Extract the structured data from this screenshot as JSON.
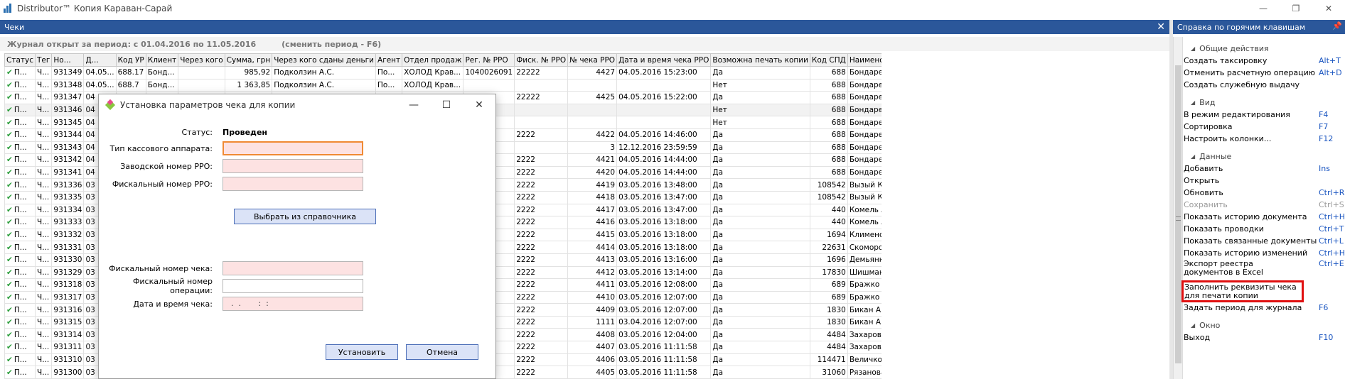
{
  "window": {
    "title": "Distributor™ Копия Караван-Сарай",
    "minimize": "—",
    "restore": "❐",
    "close": "✕"
  },
  "left_panel": {
    "title": "Чеки",
    "close": "✕",
    "period_text": "Журнал открыт за период: с 01.04.2016 по 11.05.2016",
    "change_period": "(сменить период - F6)"
  },
  "grid": {
    "columns": [
      "Статус",
      "Тег",
      "Но...",
      "Д...",
      "Код УР",
      "Клиент",
      "Через кого",
      "Сумма, грн",
      "Через кого сданы деньги",
      "Агент",
      "Отдел продаж",
      "Рег. № РРО",
      "Фиск. № РРО",
      "№ чека РРО",
      "Дата и время чека РРО",
      "Возможна печать копии",
      "Код СПД",
      "Наименование СПД"
    ],
    "rows": [
      {
        "status": "П...",
        "tag": "Ч...",
        "no": "931349",
        "date": "04.05...",
        "code": "688.17",
        "client": "Бонд...",
        "via": "",
        "sum": "985,92",
        "cash_via": "Подколзин А.С.",
        "agent": "По...",
        "dept": "ХОЛОД Крав...",
        "reg": "1040026091",
        "fisc": "22222",
        "check_no": "4427",
        "dt": "04.05.2016 15:23:00",
        "copy": "Да",
        "spd_code": "688",
        "spd": "Бондарева О.С."
      },
      {
        "status": "П...",
        "tag": "Ч...",
        "no": "931348",
        "date": "04.05...",
        "code": "688.7",
        "client": "Бонд...",
        "via": "",
        "sum": "1 363,85",
        "cash_via": "Подколзин А.С.",
        "agent": "По...",
        "dept": "ХОЛОД Крав...",
        "reg": "",
        "fisc": "",
        "check_no": "",
        "dt": "",
        "copy": "Нет",
        "spd_code": "688",
        "spd": "Бондарева О.С."
      },
      {
        "status": "П...",
        "tag": "Ч...",
        "no": "931347",
        "date": "04",
        "code": "",
        "client": "",
        "via": "",
        "sum": "",
        "cash_via": "",
        "agent": "",
        "dept": "",
        "reg": "",
        "fisc": "22222",
        "check_no": "4425",
        "dt": "04.05.2016 15:22:00",
        "copy": "Да",
        "spd_code": "688",
        "spd": "Бондарева О.С."
      },
      {
        "status": "П...",
        "tag": "Ч...",
        "no": "931346",
        "date": "04",
        "code": "",
        "client": "",
        "via": "",
        "sum": "",
        "cash_via": "",
        "agent": "",
        "dept": "",
        "reg": "",
        "fisc": "",
        "check_no": "",
        "dt": "",
        "copy": "Нет",
        "spd_code": "688",
        "spd": "Бондарева О.С."
      },
      {
        "status": "П...",
        "tag": "Ч...",
        "no": "931345",
        "date": "04",
        "code": "",
        "client": "",
        "via": "",
        "sum": "",
        "cash_via": "",
        "agent": "",
        "dept": "",
        "reg": "",
        "fisc": "",
        "check_no": "",
        "dt": "",
        "copy": "Нет",
        "spd_code": "688",
        "spd": "Бондарева О.С."
      },
      {
        "status": "П...",
        "tag": "Ч...",
        "no": "931344",
        "date": "04",
        "code": "",
        "client": "",
        "via": "",
        "sum": "",
        "cash_via": "",
        "agent": "",
        "dept": "",
        "reg": "",
        "fisc": "2222",
        "check_no": "4422",
        "dt": "04.05.2016 14:46:00",
        "copy": "Да",
        "spd_code": "688",
        "spd": "Бондарева О.С."
      },
      {
        "status": "П...",
        "tag": "Ч...",
        "no": "931343",
        "date": "04",
        "code": "",
        "client": "",
        "via": "",
        "sum": "",
        "cash_via": "",
        "agent": "",
        "dept": "",
        "reg": "",
        "fisc": "",
        "check_no": "3",
        "dt": "12.12.2016 23:59:59",
        "copy": "Да",
        "spd_code": "688",
        "spd": "Бондарева О.С."
      },
      {
        "status": "П...",
        "tag": "Ч...",
        "no": "931342",
        "date": "04",
        "code": "",
        "client": "",
        "via": "",
        "sum": "",
        "cash_via": "",
        "agent": "",
        "dept": "",
        "reg": "",
        "fisc": "2222",
        "check_no": "4421",
        "dt": "04.05.2016 14:44:00",
        "copy": "Да",
        "spd_code": "688",
        "spd": "Бондарева О.С."
      },
      {
        "status": "П...",
        "tag": "Ч...",
        "no": "931341",
        "date": "04",
        "code": "",
        "client": "",
        "via": "",
        "sum": "",
        "cash_via": "",
        "agent": "",
        "dept": "",
        "reg": "",
        "fisc": "2222",
        "check_no": "4420",
        "dt": "04.05.2016 14:44:00",
        "copy": "Да",
        "spd_code": "688",
        "spd": "Бондарева О.С."
      },
      {
        "status": "П...",
        "tag": "Ч...",
        "no": "931336",
        "date": "03",
        "code": "",
        "client": "",
        "via": "",
        "sum": "",
        "cash_via": "",
        "agent": "",
        "dept": "",
        "reg": "",
        "fisc": "2222",
        "check_no": "4419",
        "dt": "03.05.2016 13:48:00",
        "copy": "Да",
        "spd_code": "108542",
        "spd": "Вызый К.И."
      },
      {
        "status": "П...",
        "tag": "Ч...",
        "no": "931335",
        "date": "03",
        "code": "",
        "client": "",
        "via": "",
        "sum": "",
        "cash_via": "",
        "agent": "",
        "dept": "",
        "reg": "",
        "fisc": "2222",
        "check_no": "4418",
        "dt": "03.05.2016 13:47:00",
        "copy": "Да",
        "spd_code": "108542",
        "spd": "Вызый К.И."
      },
      {
        "status": "П...",
        "tag": "Ч...",
        "no": "931334",
        "date": "03",
        "code": "",
        "client": "",
        "via": "",
        "sum": "",
        "cash_via": "",
        "agent": "",
        "dept": "",
        "reg": "",
        "fisc": "2222",
        "check_no": "4417",
        "dt": "03.05.2016 13:47:00",
        "copy": "Да",
        "spd_code": "440",
        "spd": "Комель А.И."
      },
      {
        "status": "П...",
        "tag": "Ч...",
        "no": "931333",
        "date": "03",
        "code": "",
        "client": "",
        "via": "",
        "sum": "",
        "cash_via": "",
        "agent": "",
        "dept": "",
        "reg": "",
        "fisc": "2222",
        "check_no": "4416",
        "dt": "03.05.2016 13:18:00",
        "copy": "Да",
        "spd_code": "440",
        "spd": "Комель А.И."
      },
      {
        "status": "П...",
        "tag": "Ч...",
        "no": "931332",
        "date": "03",
        "code": "",
        "client": "",
        "via": "",
        "sum": "",
        "cash_via": "",
        "agent": "",
        "dept": "",
        "reg": "",
        "fisc": "2222",
        "check_no": "4415",
        "dt": "03.05.2016 13:18:00",
        "copy": "Да",
        "spd_code": "1694",
        "spd": "Клименова Т.А."
      },
      {
        "status": "П...",
        "tag": "Ч...",
        "no": "931331",
        "date": "03",
        "code": "",
        "client": "",
        "via": "",
        "sum": "",
        "cash_via": "",
        "agent": "",
        "dept": "",
        "reg": "",
        "fisc": "2222",
        "check_no": "4414",
        "dt": "03.05.2016 13:18:00",
        "copy": "Да",
        "spd_code": "22631",
        "spd": "Скоморох В.Н."
      },
      {
        "status": "П...",
        "tag": "Ч...",
        "no": "931330",
        "date": "03",
        "code": "",
        "client": "",
        "via": "",
        "sum": "",
        "cash_via": "",
        "agent": "",
        "dept": "",
        "reg": "",
        "fisc": "2222",
        "check_no": "4413",
        "dt": "03.05.2016 13:16:00",
        "copy": "Да",
        "spd_code": "1696",
        "spd": "Демьянко М.В."
      },
      {
        "status": "П...",
        "tag": "Ч...",
        "no": "931329",
        "date": "03",
        "code": "",
        "client": "",
        "via": "",
        "sum": "",
        "cash_via": "",
        "agent": "",
        "dept": "",
        "reg": "",
        "fisc": "2222",
        "check_no": "4412",
        "dt": "03.05.2016 13:14:00",
        "copy": "Да",
        "spd_code": "17830",
        "spd": "Шишман С.Г."
      },
      {
        "status": "П...",
        "tag": "Ч...",
        "no": "931318",
        "date": "03",
        "code": "",
        "client": "",
        "via": "",
        "sum": "",
        "cash_via": "",
        "agent": "",
        "dept": "",
        "reg": "",
        "fisc": "2222",
        "check_no": "4411",
        "dt": "03.05.2016 12:08:00",
        "copy": "Да",
        "spd_code": "689",
        "spd": "Бражко И.В."
      },
      {
        "status": "П...",
        "tag": "Ч...",
        "no": "931317",
        "date": "03",
        "code": "",
        "client": "",
        "via": "",
        "sum": "",
        "cash_via": "",
        "agent": "",
        "dept": "",
        "reg": "",
        "fisc": "2222",
        "check_no": "4410",
        "dt": "03.05.2016 12:07:00",
        "copy": "Да",
        "spd_code": "689",
        "spd": "Бражко И.В."
      },
      {
        "status": "П...",
        "tag": "Ч...",
        "no": "931316",
        "date": "03",
        "code": "",
        "client": "",
        "via": "",
        "sum": "",
        "cash_via": "",
        "agent": "",
        "dept": "",
        "reg": "",
        "fisc": "2222",
        "check_no": "4409",
        "dt": "03.05.2016 12:07:00",
        "copy": "Да",
        "spd_code": "1830",
        "spd": "Бикан А.В."
      },
      {
        "status": "П...",
        "tag": "Ч...",
        "no": "931315",
        "date": "03",
        "code": "",
        "client": "",
        "via": "",
        "sum": "",
        "cash_via": "",
        "agent": "",
        "dept": "",
        "reg": "",
        "fisc": "2222",
        "check_no": "1111",
        "dt": "03.04.2016 12:07:00",
        "copy": "Да",
        "spd_code": "1830",
        "spd": "Бикан А.В."
      },
      {
        "status": "П...",
        "tag": "Ч...",
        "no": "931314",
        "date": "03",
        "code": "",
        "client": "",
        "via": "",
        "sum": "",
        "cash_via": "",
        "agent": "",
        "dept": "",
        "reg": "",
        "fisc": "2222",
        "check_no": "4408",
        "dt": "03.05.2016 12:04:00",
        "copy": "Да",
        "spd_code": "4484",
        "spd": "Захарова А.Ю."
      },
      {
        "status": "П...",
        "tag": "Ч...",
        "no": "931311",
        "date": "03",
        "code": "",
        "client": "",
        "via": "",
        "sum": "",
        "cash_via": "",
        "agent": "",
        "dept": "",
        "reg": "",
        "fisc": "2222",
        "check_no": "4407",
        "dt": "03.05.2016 11:11:58",
        "copy": "Да",
        "spd_code": "4484",
        "spd": "Захарова А.Ю."
      },
      {
        "status": "П...",
        "tag": "Ч...",
        "no": "931310",
        "date": "03",
        "code": "",
        "client": "",
        "via": "",
        "sum": "",
        "cash_via": "",
        "agent": "",
        "dept": "",
        "reg": "",
        "fisc": "2222",
        "check_no": "4406",
        "dt": "03.05.2016 11:11:58",
        "copy": "Да",
        "spd_code": "114471",
        "spd": "Величко В.В."
      },
      {
        "status": "П...",
        "tag": "Ч...",
        "no": "931300",
        "date": "03",
        "code": "",
        "client": "",
        "via": "",
        "sum": "",
        "cash_via": "",
        "agent": "",
        "dept": "",
        "reg": "",
        "fisc": "2222",
        "check_no": "4405",
        "dt": "03.05.2016 11:11:58",
        "copy": "Да",
        "spd_code": "31060",
        "spd": "Рязанова Л.П."
      }
    ]
  },
  "dialog": {
    "title": "Установка параметров чека для копии",
    "status_label": "Статус:",
    "status_value": "Проведен",
    "cash_type_label": "Тип кассового аппарата:",
    "factory_no_label": "Заводской номер РРО:",
    "fiscal_no_label": "Фискальный номер РРО:",
    "pick_button": "Выбрать из справочника",
    "check_fiscal_label": "Фискальный номер чека:",
    "operation_fiscal_label": "Фискальный номер операции:",
    "datetime_label": "Дата и время чека:",
    "datetime_mask": "  .  .       :  :",
    "ok_button": "Установить",
    "cancel_button": "Отмена"
  },
  "help_panel": {
    "title": "Справка по горячим клавишам",
    "pin": "📌",
    "groups": [
      {
        "name": "Общие действия",
        "items": [
          {
            "label": "Создать таксировку",
            "key": "Alt+T"
          },
          {
            "label": "Отменить расчетную операцию",
            "key": "Alt+D"
          },
          {
            "label": "Создать служебную выдачу",
            "key": ""
          }
        ]
      },
      {
        "name": "Вид",
        "items": [
          {
            "label": "В режим редактирования",
            "key": "F4"
          },
          {
            "label": "Сортировка",
            "key": "F7"
          },
          {
            "label": "Настроить колонки...",
            "key": "F12"
          }
        ]
      },
      {
        "name": "Данные",
        "items": [
          {
            "label": "Добавить",
            "key": "Ins"
          },
          {
            "label": "Открыть",
            "key": ""
          },
          {
            "label": "Обновить",
            "key": "Ctrl+R"
          },
          {
            "label": "Сохранить",
            "key": "Ctrl+S"
          },
          {
            "label": "Показать историю документа",
            "key": "Ctrl+H"
          },
          {
            "label": "Показать проводки",
            "key": "Ctrl+T"
          },
          {
            "label": "Показать связанные документы",
            "key": "Ctrl+L"
          },
          {
            "label": "Показать историю изменений",
            "key": "Ctrl+H"
          },
          {
            "label": "Экспорт реестра документов в Excel",
            "key": "Ctrl+E"
          },
          {
            "label": "Заполнить реквизиты чека для печати копии",
            "key": ""
          },
          {
            "label": "Задать период для журнала",
            "key": "F6"
          }
        ]
      },
      {
        "name": "Окно",
        "items": [
          {
            "label": "Выход",
            "key": "F10"
          }
        ]
      }
    ]
  }
}
